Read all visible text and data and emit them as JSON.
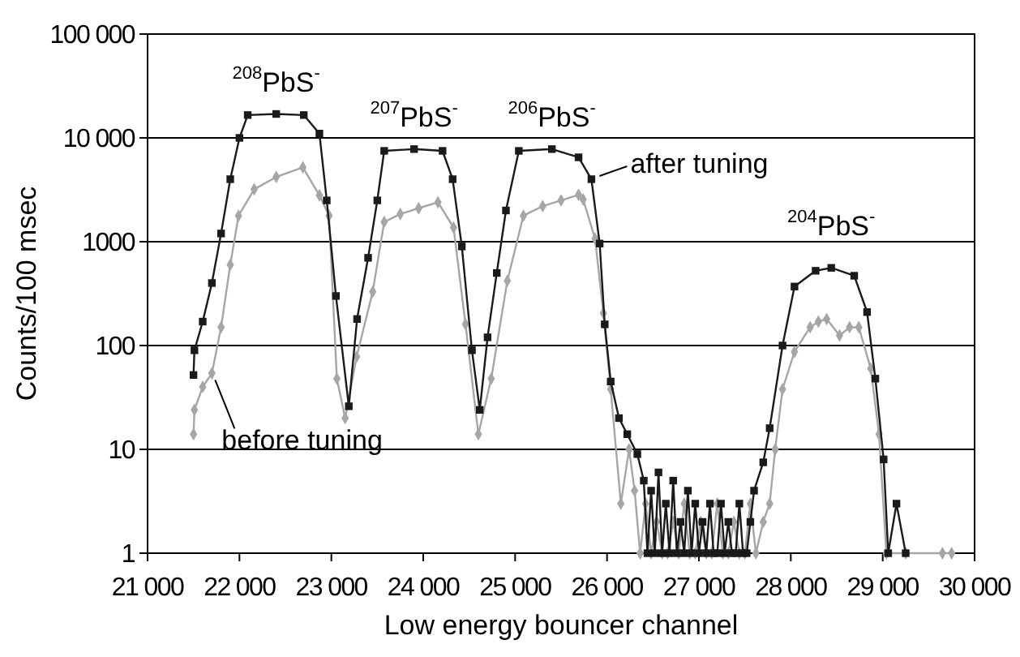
{
  "chart_data": {
    "type": "line",
    "xlabel": "Low energy bouncer channel",
    "ylabel": "Counts/100 msec",
    "log": "y",
    "grid": "y",
    "xlim": [
      21000,
      30000
    ],
    "ylim": [
      1,
      100000
    ],
    "xticks": [
      {
        "value": 21000,
        "label": "21 000"
      },
      {
        "value": 22000,
        "label": "22 000"
      },
      {
        "value": 23000,
        "label": "23 000"
      },
      {
        "value": 24000,
        "label": "24 000"
      },
      {
        "value": 25000,
        "label": "25 000"
      },
      {
        "value": 26000,
        "label": "26 000"
      },
      {
        "value": 27000,
        "label": "27 000"
      },
      {
        "value": 28000,
        "label": "28 000"
      },
      {
        "value": 29000,
        "label": "29 000"
      },
      {
        "value": 30000,
        "label": "30 000"
      }
    ],
    "yticks": [
      1,
      10,
      100,
      1000,
      {
        "value": 10000,
        "label": "10 000"
      },
      {
        "value": 100000,
        "label": "100 000"
      }
    ],
    "series": [
      {
        "color": "#a6a6a6",
        "marker": "diamond",
        "x": [
          21500,
          21510,
          21600,
          21700,
          21800,
          21900,
          21990,
          22160,
          22400,
          22690,
          22870,
          22975,
          23060,
          23150,
          23275,
          23450,
          23575,
          23750,
          23950,
          24160,
          24330,
          24460,
          24600,
          24740,
          24915,
          25090,
          25300,
          25500,
          25690,
          25740,
          25870,
          25960,
          26040,
          26150,
          26240,
          26300,
          26360,
          26420,
          26480,
          26540,
          26600,
          26660,
          26720,
          26780,
          26840,
          26900,
          26960,
          27020,
          27080,
          27140,
          27200,
          27260,
          27320,
          27380,
          27440,
          27500,
          27560,
          27620,
          27700,
          27770,
          27830,
          27910,
          28040,
          28210,
          28300,
          28390,
          28530,
          28640,
          28740,
          28870,
          28960,
          29040,
          29250,
          29650,
          29750
        ],
        "values": [
          14,
          24,
          40,
          54,
          150,
          600,
          1780,
          3200,
          4200,
          5200,
          2800,
          1780,
          48,
          20,
          78,
          330,
          1550,
          1850,
          2100,
          2400,
          1370,
          160,
          14,
          48,
          420,
          1780,
          2200,
          2500,
          2830,
          2550,
          1070,
          205,
          38,
          3,
          10,
          4,
          1,
          3,
          1,
          2,
          1,
          1,
          2,
          1,
          3,
          1,
          1,
          2,
          1,
          1,
          3,
          1,
          1,
          2,
          1,
          1,
          3,
          1,
          2,
          3,
          10,
          38,
          87,
          150,
          170,
          180,
          125,
          150,
          150,
          60,
          14,
          1,
          1,
          1,
          1
        ]
      },
      {
        "color": "#1a1a1a",
        "marker": "square",
        "x": [
          21500,
          21510,
          21600,
          21700,
          21800,
          21900,
          22000,
          22090,
          22400,
          22700,
          22870,
          22950,
          23050,
          23190,
          23280,
          23400,
          23500,
          23575,
          23900,
          24210,
          24320,
          24420,
          24530,
          24615,
          24700,
          24800,
          24900,
          25040,
          25400,
          25690,
          25830,
          25920,
          25975,
          26040,
          26130,
          26220,
          26330,
          26400,
          26440,
          26480,
          26520,
          26560,
          26600,
          26640,
          26680,
          26720,
          26760,
          26800,
          26840,
          26880,
          26920,
          26960,
          27000,
          27040,
          27080,
          27120,
          27160,
          27200,
          27240,
          27280,
          27320,
          27360,
          27400,
          27440,
          27480,
          27520,
          27560,
          27600,
          27700,
          27770,
          27910,
          28040,
          28270,
          28440,
          28690,
          28830,
          28920,
          29010,
          29060,
          29150,
          29250
        ],
        "values": [
          52,
          90,
          170,
          400,
          1200,
          4000,
          10000,
          16600,
          17000,
          16600,
          11000,
          2500,
          300,
          26,
          180,
          700,
          2500,
          7500,
          7800,
          7500,
          4000,
          900,
          90,
          24,
          120,
          500,
          2000,
          7500,
          7800,
          6500,
          4000,
          960,
          160,
          45,
          20,
          14,
          9,
          5,
          1,
          4,
          1,
          6,
          1,
          3,
          1,
          5,
          1,
          2,
          1,
          4,
          1,
          3,
          1,
          2,
          1,
          3,
          1,
          1,
          3,
          1,
          2,
          1,
          1,
          3,
          1,
          1,
          2,
          4,
          7.5,
          16,
          100,
          370,
          525,
          560,
          470,
          210,
          48,
          8,
          1,
          3,
          1
        ]
      }
    ],
    "annotations": [
      {
        "text": "$^{208}$PbS$^{-}$",
        "x": 22400,
        "y": 17000
      },
      {
        "text": "$^{207}$PbS$^{-}$",
        "x": 23900,
        "y": 7800
      },
      {
        "text": "$^{206}$PbS$^{-}$",
        "x": 25400,
        "y": 7800
      },
      {
        "text": "$^{204}$PbS$^{-}$",
        "x": 28440,
        "y": 560
      },
      {
        "text": "after tuning",
        "x": 25830,
        "y": 4000
      },
      {
        "text": "before tuning",
        "x": 21700,
        "y": 54
      }
    ]
  }
}
